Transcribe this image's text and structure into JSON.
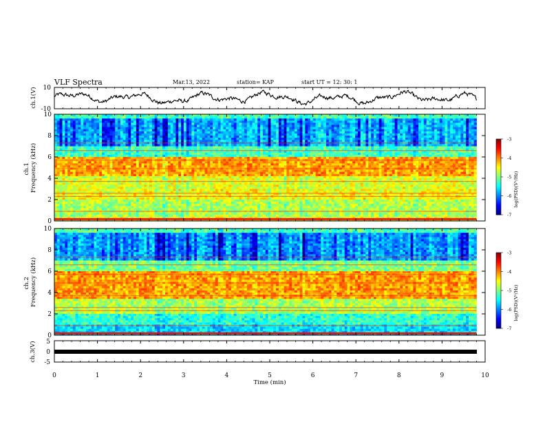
{
  "header": {
    "title": "VLF Spectra",
    "date": "Mar.13, 2022",
    "station": "station= KAP",
    "start": "start  UT  =   12: 30: 1"
  },
  "chart_data": [
    {
      "type": "line",
      "panel": "ch1-waveform",
      "ylabel": "ch.1(V)",
      "ylim": [
        -10,
        10
      ],
      "y_ticks": [
        "10",
        "-10"
      ],
      "x_range_min": [
        0,
        9.8
      ],
      "description_values": "noisy waveform oscillating roughly between -7 and 7 V"
    },
    {
      "type": "heatmap",
      "panel": "ch1-spectrogram",
      "ylabel": "ch.1\nFrequency (kHz)",
      "ylim": [
        0,
        10
      ],
      "y_ticks": [
        "0",
        "2",
        "4",
        "6",
        "8",
        "10"
      ],
      "bands_kHz": [
        {
          "from": 0,
          "to": 0.5,
          "level": -4.6
        },
        {
          "from": 0.5,
          "to": 2.0,
          "level": -4.8
        },
        {
          "from": 2.0,
          "to": 3.0,
          "level": -4.5
        },
        {
          "from": 3.0,
          "to": 4.2,
          "level": -4.6
        },
        {
          "from": 4.2,
          "to": 6.0,
          "level": -4.1
        },
        {
          "from": 6.0,
          "to": 7.0,
          "level": -5.2
        },
        {
          "from": 7.0,
          "to": 9.6,
          "level": -5.8
        },
        {
          "from": 9.6,
          "to": 10,
          "level": -5.2
        }
      ],
      "colorbar": {
        "label": "log(PSD)(V²/Hz)",
        "ticks": [
          "-3",
          "-4",
          "-5",
          "-6",
          "-7"
        ],
        "range": [
          -7,
          -3
        ]
      }
    },
    {
      "type": "heatmap",
      "panel": "ch2-spectrogram",
      "ylabel": "ch.2\nFrequency (kHz)",
      "ylim": [
        0,
        10
      ],
      "y_ticks": [
        "0",
        "2",
        "4",
        "6",
        "8",
        "10"
      ],
      "bands_kHz": [
        {
          "from": 0,
          "to": 1.0,
          "level": -5.6
        },
        {
          "from": 1.0,
          "to": 2.0,
          "level": -5.3
        },
        {
          "from": 2.0,
          "to": 3.5,
          "level": -4.8
        },
        {
          "from": 3.5,
          "to": 6.0,
          "level": -4.1
        },
        {
          "from": 6.0,
          "to": 7.0,
          "level": -5.0
        },
        {
          "from": 7.0,
          "to": 9.6,
          "level": -5.9
        },
        {
          "from": 9.6,
          "to": 10,
          "level": -5.2
        }
      ],
      "colorbar": {
        "label": "log(PSD)(V²/Hz)",
        "ticks": [
          "-3",
          "-4",
          "-5",
          "-6",
          "-7"
        ],
        "range": [
          -7,
          -3
        ]
      }
    },
    {
      "type": "line",
      "panel": "ch3-waveform",
      "ylabel": "ch.3(V)",
      "ylim": [
        -5,
        5
      ],
      "y_ticks": [
        "5",
        "0",
        "-5"
      ],
      "description_values": "flat thick line near -1 V"
    }
  ],
  "x_axis": {
    "label": "Time  (min)",
    "ticks": [
      "0",
      "1",
      "2",
      "3",
      "4",
      "5",
      "6",
      "7",
      "8",
      "9",
      "10"
    ],
    "range": [
      0,
      10
    ],
    "data_end": 9.8
  },
  "colors": {
    "axis": "#000000",
    "background": "#ffffff"
  }
}
